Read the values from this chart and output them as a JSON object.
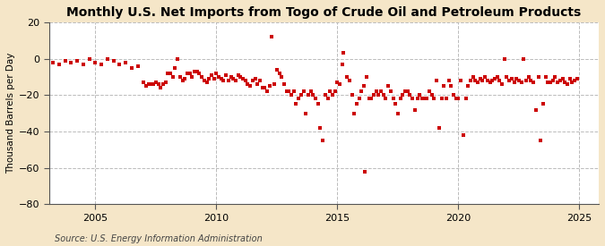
{
  "title": "Monthly U.S. Net Imports from Togo of Crude Oil and Petroleum Products",
  "ylabel": "Thousand Barrels per Day",
  "source": "Source: U.S. Energy Information Administration",
  "outer_bg": "#F5E6C8",
  "plot_bg": "#FFFFFF",
  "marker_color": "#CC0000",
  "marker": "s",
  "marker_size": 3.5,
  "xlim": [
    2003.1,
    2025.8
  ],
  "ylim": [
    -80,
    20
  ],
  "yticks": [
    -80,
    -60,
    -40,
    -20,
    0,
    20
  ],
  "xticks": [
    2005,
    2010,
    2015,
    2020,
    2025
  ],
  "grid_color": "#BBBBBB",
  "title_fontsize": 10,
  "label_fontsize": 7.5,
  "tick_fontsize": 8,
  "source_fontsize": 7,
  "data": [
    [
      2003.25,
      -2
    ],
    [
      2003.5,
      -3
    ],
    [
      2003.75,
      -1
    ],
    [
      2004.0,
      -2
    ],
    [
      2004.25,
      -1
    ],
    [
      2004.5,
      -3
    ],
    [
      2004.75,
      0
    ],
    [
      2005.0,
      -2
    ],
    [
      2005.25,
      -3
    ],
    [
      2005.5,
      0
    ],
    [
      2005.75,
      -1
    ],
    [
      2006.0,
      -3
    ],
    [
      2006.25,
      -2
    ],
    [
      2006.5,
      -5
    ],
    [
      2006.75,
      -4
    ],
    [
      2007.0,
      -13
    ],
    [
      2007.1,
      -15
    ],
    [
      2007.2,
      -14
    ],
    [
      2007.3,
      -14
    ],
    [
      2007.4,
      -14
    ],
    [
      2007.5,
      -13
    ],
    [
      2007.6,
      -14
    ],
    [
      2007.7,
      -16
    ],
    [
      2007.8,
      -14
    ],
    [
      2007.9,
      -13
    ],
    [
      2008.0,
      -8
    ],
    [
      2008.1,
      -8
    ],
    [
      2008.2,
      -10
    ],
    [
      2008.3,
      -5
    ],
    [
      2008.4,
      0
    ],
    [
      2008.5,
      -10
    ],
    [
      2008.6,
      -12
    ],
    [
      2008.7,
      -11
    ],
    [
      2008.8,
      -8
    ],
    [
      2008.9,
      -8
    ],
    [
      2009.0,
      -10
    ],
    [
      2009.1,
      -7
    ],
    [
      2009.2,
      -7
    ],
    [
      2009.3,
      -8
    ],
    [
      2009.4,
      -10
    ],
    [
      2009.5,
      -12
    ],
    [
      2009.6,
      -13
    ],
    [
      2009.7,
      -11
    ],
    [
      2009.8,
      -9
    ],
    [
      2009.9,
      -11
    ],
    [
      2010.0,
      -8
    ],
    [
      2010.1,
      -10
    ],
    [
      2010.2,
      -11
    ],
    [
      2010.3,
      -12
    ],
    [
      2010.4,
      -9
    ],
    [
      2010.5,
      -12
    ],
    [
      2010.6,
      -10
    ],
    [
      2010.7,
      -11
    ],
    [
      2010.8,
      -12
    ],
    [
      2010.9,
      -9
    ],
    [
      2011.0,
      -10
    ],
    [
      2011.1,
      -11
    ],
    [
      2011.2,
      -12
    ],
    [
      2011.3,
      -14
    ],
    [
      2011.4,
      -15
    ],
    [
      2011.5,
      -12
    ],
    [
      2011.6,
      -11
    ],
    [
      2011.7,
      -14
    ],
    [
      2011.8,
      -12
    ],
    [
      2011.9,
      -16
    ],
    [
      2012.0,
      -16
    ],
    [
      2012.1,
      -18
    ],
    [
      2012.2,
      -15
    ],
    [
      2012.3,
      12
    ],
    [
      2012.4,
      -14
    ],
    [
      2012.5,
      -6
    ],
    [
      2012.6,
      -8
    ],
    [
      2012.7,
      -10
    ],
    [
      2012.8,
      -14
    ],
    [
      2012.9,
      -18
    ],
    [
      2013.0,
      -18
    ],
    [
      2013.1,
      -20
    ],
    [
      2013.2,
      -18
    ],
    [
      2013.3,
      -25
    ],
    [
      2013.4,
      -22
    ],
    [
      2013.5,
      -20
    ],
    [
      2013.6,
      -18
    ],
    [
      2013.7,
      -30
    ],
    [
      2013.8,
      -20
    ],
    [
      2013.9,
      -18
    ],
    [
      2014.0,
      -20
    ],
    [
      2014.1,
      -22
    ],
    [
      2014.2,
      -25
    ],
    [
      2014.3,
      -38
    ],
    [
      2014.4,
      -45
    ],
    [
      2014.5,
      -20
    ],
    [
      2014.6,
      -22
    ],
    [
      2014.7,
      -18
    ],
    [
      2014.8,
      -20
    ],
    [
      2014.9,
      -18
    ],
    [
      2015.0,
      -13
    ],
    [
      2015.1,
      -14
    ],
    [
      2015.2,
      -3
    ],
    [
      2015.25,
      3
    ],
    [
      2015.4,
      -10
    ],
    [
      2015.5,
      -12
    ],
    [
      2015.6,
      -20
    ],
    [
      2015.7,
      -30
    ],
    [
      2015.8,
      -25
    ],
    [
      2015.9,
      -22
    ],
    [
      2016.0,
      -18
    ],
    [
      2016.1,
      -15
    ],
    [
      2016.15,
      -62
    ],
    [
      2016.2,
      -10
    ],
    [
      2016.3,
      -22
    ],
    [
      2016.4,
      -22
    ],
    [
      2016.5,
      -20
    ],
    [
      2016.6,
      -18
    ],
    [
      2016.7,
      -20
    ],
    [
      2016.8,
      -18
    ],
    [
      2016.9,
      -20
    ],
    [
      2017.0,
      -22
    ],
    [
      2017.1,
      -15
    ],
    [
      2017.2,
      -18
    ],
    [
      2017.3,
      -22
    ],
    [
      2017.4,
      -25
    ],
    [
      2017.5,
      -30
    ],
    [
      2017.6,
      -22
    ],
    [
      2017.7,
      -20
    ],
    [
      2017.8,
      -18
    ],
    [
      2017.9,
      -18
    ],
    [
      2018.0,
      -20
    ],
    [
      2018.1,
      -22
    ],
    [
      2018.2,
      -28
    ],
    [
      2018.3,
      -22
    ],
    [
      2018.4,
      -20
    ],
    [
      2018.5,
      -22
    ],
    [
      2018.6,
      -22
    ],
    [
      2018.7,
      -22
    ],
    [
      2018.8,
      -18
    ],
    [
      2018.9,
      -20
    ],
    [
      2019.0,
      -22
    ],
    [
      2019.1,
      -12
    ],
    [
      2019.2,
      -38
    ],
    [
      2019.3,
      -22
    ],
    [
      2019.4,
      -15
    ],
    [
      2019.5,
      -22
    ],
    [
      2019.6,
      -12
    ],
    [
      2019.7,
      -15
    ],
    [
      2019.8,
      -20
    ],
    [
      2019.9,
      -22
    ],
    [
      2020.0,
      -22
    ],
    [
      2020.1,
      -12
    ],
    [
      2020.2,
      -42
    ],
    [
      2020.3,
      -22
    ],
    [
      2020.4,
      -15
    ],
    [
      2020.5,
      -12
    ],
    [
      2020.6,
      -10
    ],
    [
      2020.7,
      -12
    ],
    [
      2020.8,
      -13
    ],
    [
      2020.9,
      -11
    ],
    [
      2021.0,
      -12
    ],
    [
      2021.1,
      -10
    ],
    [
      2021.2,
      -12
    ],
    [
      2021.3,
      -13
    ],
    [
      2021.4,
      -12
    ],
    [
      2021.5,
      -11
    ],
    [
      2021.6,
      -10
    ],
    [
      2021.7,
      -12
    ],
    [
      2021.8,
      -14
    ],
    [
      2021.9,
      0
    ],
    [
      2022.0,
      -10
    ],
    [
      2022.1,
      -12
    ],
    [
      2022.2,
      -11
    ],
    [
      2022.3,
      -13
    ],
    [
      2022.4,
      -11
    ],
    [
      2022.5,
      -12
    ],
    [
      2022.6,
      -13
    ],
    [
      2022.7,
      0
    ],
    [
      2022.8,
      -12
    ],
    [
      2022.9,
      -10
    ],
    [
      2023.0,
      -12
    ],
    [
      2023.1,
      -13
    ],
    [
      2023.2,
      -28
    ],
    [
      2023.3,
      -10
    ],
    [
      2023.4,
      -45
    ],
    [
      2023.5,
      -25
    ],
    [
      2023.6,
      -10
    ],
    [
      2023.7,
      -13
    ],
    [
      2023.8,
      -13
    ],
    [
      2023.9,
      -12
    ],
    [
      2024.0,
      -10
    ],
    [
      2024.1,
      -13
    ],
    [
      2024.2,
      -12
    ],
    [
      2024.3,
      -11
    ],
    [
      2024.4,
      -13
    ],
    [
      2024.5,
      -14
    ],
    [
      2024.6,
      -11
    ],
    [
      2024.7,
      -13
    ],
    [
      2024.8,
      -12
    ],
    [
      2024.9,
      -11
    ]
  ]
}
